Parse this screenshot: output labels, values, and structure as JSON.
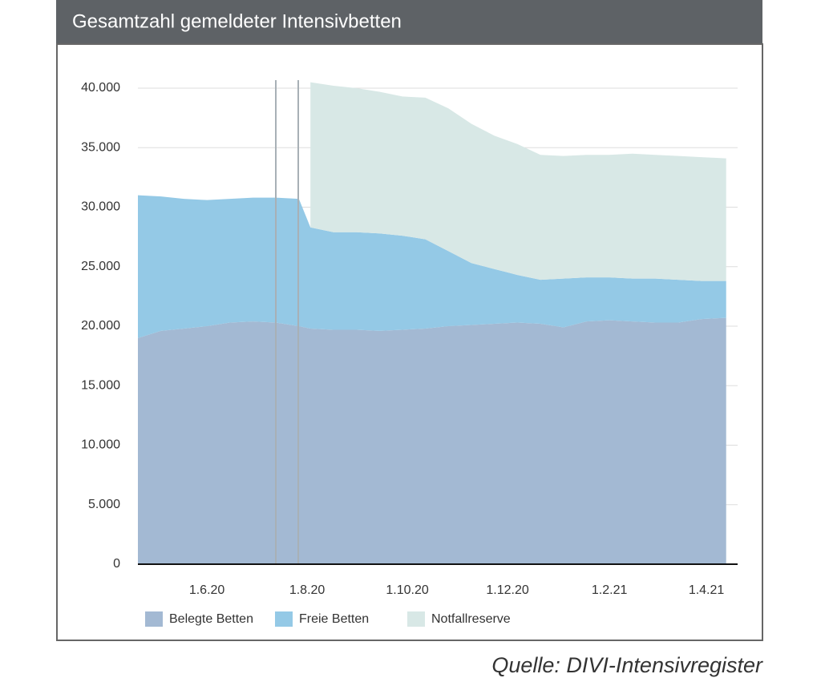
{
  "chart_data": {
    "type": "stacked-area",
    "title": "Gesamtzahl gemeldeter Intensivbetten",
    "source": "Quelle: DIVI-Intensivregister",
    "x": [
      "20.4.20",
      "4.5.20",
      "18.5.20",
      "1.6.20",
      "15.6.20",
      "29.6.20",
      "13.7.20",
      "27.7.20",
      "3.8.20",
      "17.8.20",
      "31.8.20",
      "14.9.20",
      "28.9.20",
      "12.10.20",
      "26.10.20",
      "9.11.20",
      "23.11.20",
      "7.12.20",
      "21.12.20",
      "4.1.21",
      "18.1.21",
      "1.2.21",
      "15.2.21",
      "1.3.21",
      "15.3.21",
      "29.3.21",
      "13.4.21"
    ],
    "series": [
      {
        "name": "Belegte Betten",
        "color": "#a3b9d3",
        "values": [
          19000,
          19600,
          19800,
          20000,
          20300,
          20400,
          20300,
          20000,
          19800,
          19700,
          19700,
          19600,
          19700,
          19800,
          20000,
          20100,
          20200,
          20300,
          20200,
          19900,
          20400,
          20500,
          20400,
          20300,
          20300,
          20600,
          20700
        ]
      },
      {
        "name": "Freie Betten",
        "color": "#94c9e6",
        "values": [
          12000,
          11300,
          10900,
          10600,
          10400,
          10400,
          10500,
          10700,
          8500,
          8200,
          8200,
          8200,
          7900,
          7500,
          6300,
          5200,
          4600,
          4000,
          3700,
          4100,
          3700,
          3600,
          3600,
          3700,
          3600,
          3200,
          3100
        ]
      },
      {
        "name": "Notfallreserve",
        "color": "#d8e8e6",
        "values": [
          null,
          null,
          null,
          null,
          null,
          null,
          null,
          null,
          12200,
          12300,
          12100,
          11900,
          11700,
          11900,
          12000,
          11700,
          11200,
          11000,
          10500,
          10300,
          10300,
          10300,
          10500,
          10400,
          10400,
          10400,
          10300
        ]
      }
    ],
    "xlim": [
      "20.4.20",
      "20.4.21"
    ],
    "xticks": [
      "1.6.20",
      "1.8.20",
      "1.10.20",
      "1.12.20",
      "1.2.21",
      "1.4.21"
    ],
    "ylim": [
      0,
      40000
    ],
    "yticks": [
      0,
      {
        "value": 5000,
        "label": "5.000"
      },
      {
        "value": 10000,
        "label": "10.000"
      },
      {
        "value": 15000,
        "label": "15.000"
      },
      {
        "value": 20000,
        "label": "20.000"
      },
      {
        "value": 25000,
        "label": "25.000"
      },
      {
        "value": 30000,
        "label": "30.000"
      },
      {
        "value": 35000,
        "label": "35.000"
      },
      {
        "value": 40000,
        "label": "40.000"
      }
    ],
    "grid": true
  }
}
